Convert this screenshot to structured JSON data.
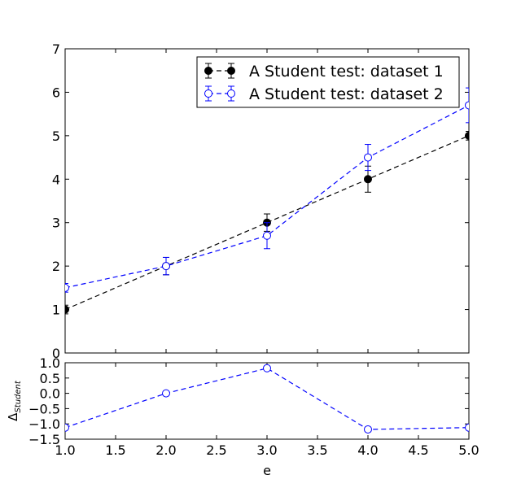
{
  "chart_data": [
    {
      "type": "line",
      "panel": "main",
      "ylim": [
        0,
        7
      ],
      "xlim": [
        1.0,
        5.0
      ],
      "yticks": [
        "0",
        "1",
        "2",
        "3",
        "4",
        "5",
        "6",
        "7"
      ],
      "legend": {
        "placement": "top-right"
      },
      "series": [
        {
          "name": "A Student test: dataset 1",
          "color": "#000000",
          "marker": "filled-circle",
          "linestyle": "dashed",
          "x": [
            1.0,
            2.0,
            3.0,
            4.0,
            5.0
          ],
          "y": [
            1.0,
            2.0,
            3.0,
            4.0,
            5.0
          ],
          "yerr": [
            0.1,
            0.2,
            0.2,
            0.3,
            0.1
          ]
        },
        {
          "name": "A Student test: dataset 2",
          "color": "#0000ff",
          "marker": "open-circle",
          "linestyle": "dashed",
          "x": [
            1.0,
            2.0,
            3.0,
            4.0,
            5.0
          ],
          "y": [
            1.5,
            2.0,
            2.7,
            4.5,
            5.7
          ],
          "yerr": [
            0.1,
            0.2,
            0.3,
            0.3,
            0.4
          ]
        }
      ]
    },
    {
      "type": "line",
      "panel": "residual",
      "ylim": [
        -1.5,
        1.0
      ],
      "xlim": [
        1.0,
        5.0
      ],
      "xlabel": "e",
      "ylabel": "Δ",
      "ylabel_sub": "Student",
      "xticks": [
        "1.0",
        "1.5",
        "2.0",
        "2.5",
        "3.0",
        "3.5",
        "4.0",
        "4.5",
        "5.0"
      ],
      "yticks": [
        "1.0",
        "0.5",
        "0.0",
        "−0.5",
        "−1.0",
        "−1.5"
      ],
      "series": [
        {
          "color": "#0000ff",
          "marker": "open-circle",
          "linestyle": "dashed",
          "x": [
            1.0,
            2.0,
            3.0,
            4.0,
            5.0
          ],
          "y": [
            -1.12,
            0.0,
            0.82,
            -1.18,
            -1.12
          ]
        }
      ]
    }
  ]
}
